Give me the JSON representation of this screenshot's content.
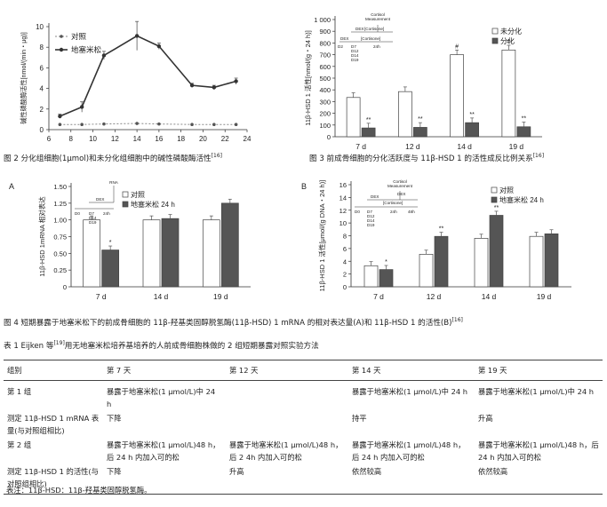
{
  "fig2": {
    "caption": "图 2   分化组细胞(1μmol)和未分化组细胞中的碱性磷酸酶活性",
    "ref": "[16]",
    "chart_data": {
      "type": "line",
      "ylabel": "碱性磷酸酶活性[nmol/(min・μg)]",
      "x": [
        7,
        9,
        11,
        14,
        16,
        19,
        21,
        23
      ],
      "xticks": [
        "6",
        "8",
        "10",
        "12",
        "14",
        "16",
        "18",
        "20",
        "22",
        "24"
      ],
      "xlim": [
        6,
        24
      ],
      "ylim": [
        0,
        10
      ],
      "series": [
        {
          "name": "对照",
          "values": [
            0.5,
            0.5,
            0.55,
            0.6,
            0.55,
            0.5,
            0.5,
            0.5
          ]
        },
        {
          "name": "地塞米松",
          "values": [
            1.3,
            2.2,
            7.2,
            9.1,
            8.1,
            4.3,
            4.1,
            4.7
          ]
        }
      ],
      "errors": [
        0.2,
        0.5,
        0.4,
        1.4,
        0.3,
        0.2,
        0.2,
        0.3
      ]
    }
  },
  "fig3": {
    "caption": "图 3   前成骨细胞的分化活跃度与 11β-HSD 1 的活性成反比例关系",
    "ref": "[16]",
    "chart_data": {
      "type": "bar",
      "ylabel": "11β-HSD 1 活性[nmol/(g・24 h)]",
      "categories": [
        "7 d",
        "12 d",
        "14 d",
        "19 d"
      ],
      "yticks": [
        "0",
        "100",
        "200",
        "300",
        "400",
        "500",
        "600",
        "700",
        "800",
        "900",
        "1 000"
      ],
      "ylim": [
        0,
        1000
      ],
      "series": [
        {
          "name": "未分化",
          "values": [
            335,
            385,
            700,
            740
          ]
        },
        {
          "name": "分化",
          "values": [
            75,
            80,
            120,
            85
          ]
        }
      ],
      "marks_a": [
        "",
        "",
        "#",
        "#"
      ],
      "marks_b": [
        "**",
        "**",
        "**",
        "**"
      ]
    },
    "inset": {
      "label1": "Cortisol",
      "label2": "Measurement",
      "dex": "DEX",
      "cortisone": "[Cortisone]",
      "dex2": "DEX",
      "cortisone2": "[Cortisone]",
      "d2": "D2",
      "days": [
        "D7",
        "D12",
        "D14",
        "D19"
      ],
      "h24": "24h"
    }
  },
  "fig4": {
    "caption": "图 4   短期暴露于地塞米松下的前成骨细胞的 11β-羟基类固醇脱氢酶(11β-HSD) 1 mRNA 的相对表达量(A)和 11β-HSD 1 的活性(B)",
    "ref": "[16]",
    "panelA": {
      "letter": "A",
      "chart_data": {
        "type": "bar",
        "ylabel": "11β-HSD 1mRNA 相对表达",
        "categories": [
          "7 d",
          "14 d",
          "19 d"
        ],
        "yticks": [
          "0",
          "0.25",
          "0.50",
          "0.75",
          "1.00",
          "1.25",
          "1.50"
        ],
        "ylim": [
          0,
          1.5
        ],
        "series": [
          {
            "name": "对照",
            "values": [
              1.0,
              1.0,
              1.0
            ]
          },
          {
            "name": "地塞米松 24 h",
            "values": [
              0.55,
              1.02,
              1.25
            ]
          }
        ],
        "marks": [
          "*",
          "",
          ""
        ]
      },
      "inset": {
        "rna": "RNA",
        "dex": "DEX",
        "d0": "D0",
        "days": [
          "D7",
          "D14",
          "D19"
        ],
        "h24": "24h"
      }
    },
    "panelB": {
      "letter": "B",
      "chart_data": {
        "type": "bar",
        "ylabel": "11β-HSD 1 活性[μmol/(g DNA・24 h)]",
        "categories": [
          "7 d",
          "12 d",
          "14 d",
          "19 d"
        ],
        "yticks": [
          "0",
          "2",
          "4",
          "6",
          "8",
          "10",
          "12",
          "14",
          "16"
        ],
        "ylim": [
          0,
          16
        ],
        "series": [
          {
            "name": "对照",
            "values": [
              3.3,
              5.1,
              7.6,
              7.9
            ]
          },
          {
            "name": "地塞米松 24 h",
            "values": [
              2.7,
              7.9,
              11.2,
              8.3
            ]
          }
        ],
        "marks": [
          "*",
          "**",
          "**",
          ""
        ]
      },
      "inset": {
        "label1": "Cortisol",
        "label2": "Measurement",
        "dex": "DEX",
        "cortisone": "[Cortisone]",
        "d0": "D0",
        "days": [
          "D7",
          "D12",
          "D14",
          "D19"
        ],
        "h24": "24h",
        "h48": "48h"
      }
    }
  },
  "table1": {
    "caption": "表 1   Eijken 等",
    "caption_ref": "[19]",
    "caption_rest": "用无地塞米松培养基培养的人前成骨细胞株做的 2 组短期暴露对照实验方法",
    "headers": [
      "组别",
      "第 7 天",
      "第 12 天",
      "第 14 天",
      "第 19 天"
    ],
    "rows": [
      [
        "第 1 组",
        "暴露于地塞米松(1 μmol/L)中 24 h",
        "",
        "暴露于地塞米松(1 μmol/L)中 24 h",
        "暴露于地塞米松(1 μmol/L)中 24 h"
      ],
      [
        "测定 11β-HSD 1 mRNA 表量(与对照组相比)",
        "下降",
        "",
        "持平",
        "升高"
      ],
      [
        "第 2 组",
        "暴露于地塞米松(1 μmol/L)48 h，后 24 h 内加入可的松",
        "暴露于地塞米松(1 μmol/L)48 h，后 2 4h 内加入可的松",
        "暴露于地塞米松(1 μmol/L)48 h，后 24 h 内加入可的松",
        "暴露于地塞米松(1 μmol/L)48 h，后 24 h 内加入可的松"
      ],
      [
        "测定 11β-HSD 1 的活性(与对照组相比)",
        "下降",
        "升高",
        "依然较高",
        "依然较高"
      ]
    ],
    "note": "表注：11β-HSD：11β-羟基类固醇脱氢酶。"
  }
}
